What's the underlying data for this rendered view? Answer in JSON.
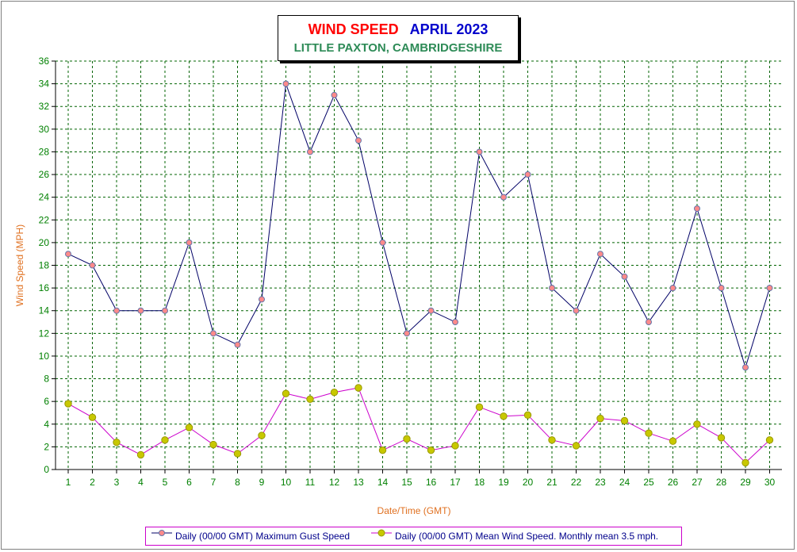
{
  "title": {
    "main": "WIND SPEED",
    "period": "APRIL 2023",
    "location": "LITTLE PAXTON, CAMBRIDGESHIRE"
  },
  "colors": {
    "title_main": "#ff0000",
    "title_period": "#0000cc",
    "title_location": "#2e8b57",
    "axis_labels": "#e07020",
    "tick_labels": "#008000",
    "grid": "#006400",
    "gust_line": "#000066",
    "mean_line": "#cc00cc",
    "gust_marker": "#ff8a8a",
    "mean_marker": "#c8c800"
  },
  "legend": {
    "gust": "Daily (00/00 GMT) Maximum Gust Speed",
    "mean": "Daily (00/00 GMT) Mean Wind Speed. Monthly mean 3.5 mph."
  },
  "chart_data": {
    "type": "line",
    "xlabel": "Date/Time (GMT)",
    "ylabel": "Wind Speed (MPH)",
    "ylim": [
      0,
      36
    ],
    "y_ticks": [
      0,
      2,
      4,
      6,
      8,
      10,
      12,
      14,
      16,
      18,
      20,
      22,
      24,
      26,
      28,
      30,
      32,
      34,
      36
    ],
    "categories": [
      "1",
      "2",
      "3",
      "4",
      "5",
      "6",
      "7",
      "8",
      "9",
      "10",
      "11",
      "12",
      "13",
      "14",
      "15",
      "16",
      "17",
      "18",
      "19",
      "20",
      "21",
      "22",
      "23",
      "24",
      "25",
      "26",
      "27",
      "28",
      "29",
      "30"
    ],
    "grid": true,
    "legend_position": "bottom",
    "series": [
      {
        "name": "Daily (00/00 GMT) Maximum Gust Speed",
        "values": [
          19,
          18,
          14,
          14,
          14,
          20,
          12,
          11,
          15,
          34,
          28,
          33,
          29,
          20,
          12,
          14,
          13,
          28,
          24,
          26,
          16,
          14,
          19,
          17,
          13,
          16,
          23,
          16,
          9,
          16
        ]
      },
      {
        "name": "Daily (00/00 GMT) Mean Wind Speed. Monthly mean 3.5 mph.",
        "values": [
          5.8,
          4.6,
          2.4,
          1.3,
          2.6,
          3.7,
          2.2,
          1.4,
          3.0,
          6.7,
          6.2,
          6.8,
          7.2,
          1.7,
          2.7,
          1.7,
          2.1,
          5.5,
          4.7,
          4.8,
          2.6,
          2.1,
          4.5,
          4.3,
          3.2,
          2.5,
          4.0,
          2.8,
          0.6,
          2.6
        ]
      }
    ]
  }
}
